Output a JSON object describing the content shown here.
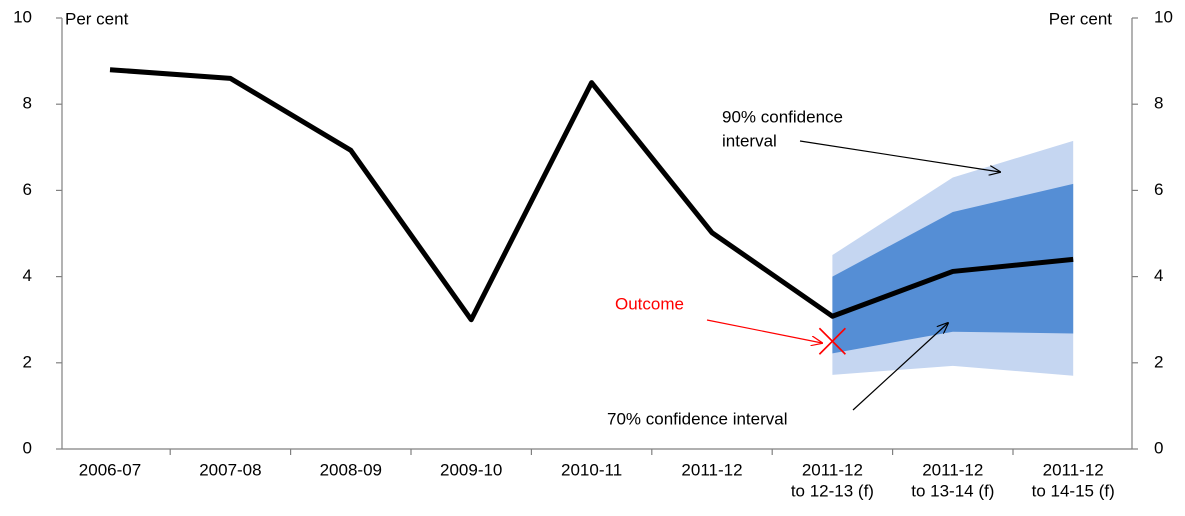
{
  "chart_data": {
    "type": "line",
    "categories": [
      [
        "2006-07"
      ],
      [
        "2007-08"
      ],
      [
        "2008-09"
      ],
      [
        "2009-10"
      ],
      [
        "2010-11"
      ],
      [
        "2011-12"
      ],
      [
        "2011-12",
        "to 12-13 (f)"
      ],
      [
        "2011-12",
        "to 13-14 (f)"
      ],
      [
        "2011-12",
        "to 14-15 (f)"
      ]
    ],
    "series": [
      {
        "color": "#000000",
        "values": [
          8.8,
          8.6,
          6.93,
          3.0,
          8.5,
          5.02,
          3.08,
          4.12,
          4.4
        ]
      }
    ],
    "bands": [
      {
        "color": "#c5d6f1",
        "lower": [
          null,
          null,
          null,
          null,
          null,
          null,
          1.72,
          1.93,
          1.7
        ],
        "upper": [
          null,
          null,
          null,
          null,
          null,
          null,
          4.5,
          6.3,
          7.15
        ]
      },
      {
        "color": "#558ed5",
        "lower": [
          null,
          null,
          null,
          null,
          null,
          null,
          2.22,
          2.72,
          2.68
        ],
        "upper": [
          null,
          null,
          null,
          null,
          null,
          null,
          4.0,
          5.5,
          6.15
        ]
      }
    ],
    "outcome": {
      "category": 6,
      "value": 2.5,
      "color": "#ff0000",
      "label": "Outcome"
    },
    "annotations": [
      [
        "90% confidence",
        "interval"
      ],
      [
        "70% confidence interval"
      ]
    ],
    "ylabel": "Per cent",
    "y2label": "Per cent",
    "ylim": [
      0,
      10
    ],
    "yticks": [
      0,
      2,
      4,
      6,
      8,
      10
    ],
    "y2lim": [
      0,
      10
    ],
    "y2ticks": [
      0,
      2,
      4,
      6,
      8,
      10
    ]
  }
}
